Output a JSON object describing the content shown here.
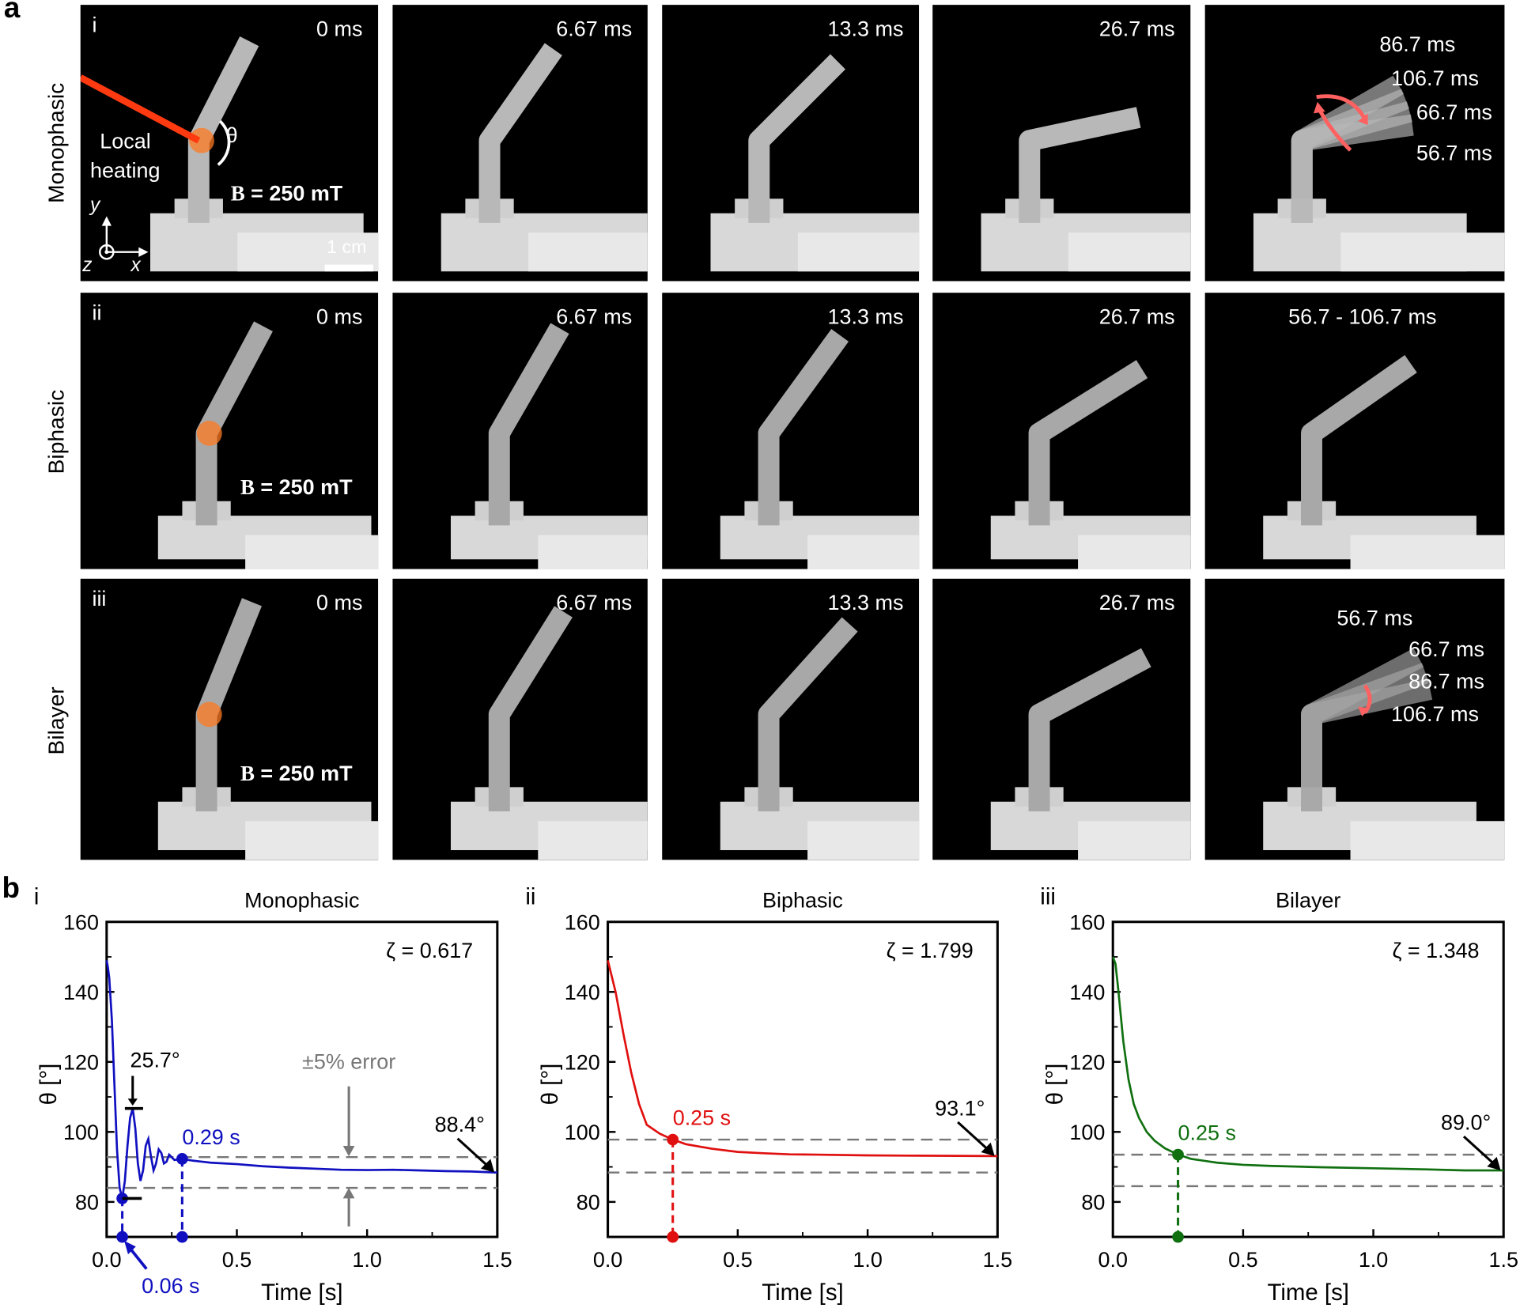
{
  "figure": {
    "panel_a_letter": "a",
    "panel_b_letter": "b",
    "row_labels": [
      "Monophasic",
      "Biphasic",
      "Bilayer"
    ],
    "row_roman": [
      "i",
      "ii",
      "iii"
    ],
    "field_label": "= 250 mT",
    "field_symbol": "B",
    "local_heating": [
      "Local",
      "heating"
    ],
    "theta_symbol": "θ",
    "scale_bar": "1 cm",
    "axes_labels": {
      "x": "x",
      "y": "y",
      "z": "z"
    },
    "laser_color": "#ff3a10",
    "annotation_arrow_color": "#ff6060",
    "photos": [
      {
        "times": [
          "0 ms",
          "6.67 ms",
          "13.3 ms",
          "26.7 ms"
        ],
        "last": [
          "86.7 ms",
          "106.7 ms",
          "66.7 ms",
          "56.7 ms"
        ]
      },
      {
        "times": [
          "0 ms",
          "6.67 ms",
          "13.3 ms",
          "26.7 ms"
        ],
        "last": [
          "56.7 -  106.7 ms"
        ]
      },
      {
        "times": [
          "0 ms",
          "6.67 ms",
          "13.3 ms",
          "26.7 ms"
        ],
        "last": [
          "56.7 ms",
          "66.7 ms",
          "86.7 ms",
          "106.7 ms"
        ]
      }
    ]
  },
  "chart_data": [
    {
      "type": "line",
      "roman": "i",
      "title": "Monophasic",
      "xlabel": "Time [s]",
      "ylabel": "θ [°]",
      "xlim": [
        0,
        1.5
      ],
      "ylim": [
        70,
        160
      ],
      "xticks": [
        "0.0",
        "0.5",
        "1.0",
        "1.5"
      ],
      "yticks": [
        "80",
        "100",
        "120",
        "140",
        "160"
      ],
      "color": "#1010c0",
      "damping": "ζ = 0.617",
      "band": [
        92.8,
        84.0
      ],
      "band_label": "±5% error",
      "final_label": "88.4°",
      "overshoot_label": "25.7°",
      "overshoot_range": [
        81,
        106.7
      ],
      "markers": [
        {
          "t": 0.06,
          "theta": 81,
          "label": "0.06 s"
        },
        {
          "t": 0.29,
          "theta": 92.3,
          "label": "0.29 s"
        }
      ],
      "points": [
        [
          0,
          149
        ],
        [
          0.005,
          147
        ],
        [
          0.01,
          144
        ],
        [
          0.02,
          132
        ],
        [
          0.03,
          113
        ],
        [
          0.04,
          95
        ],
        [
          0.05,
          84
        ],
        [
          0.06,
          81
        ],
        [
          0.07,
          86
        ],
        [
          0.08,
          96
        ],
        [
          0.09,
          104
        ],
        [
          0.1,
          106.7
        ],
        [
          0.11,
          101
        ],
        [
          0.12,
          91
        ],
        [
          0.13,
          86
        ],
        [
          0.14,
          89
        ],
        [
          0.15,
          96
        ],
        [
          0.16,
          98
        ],
        [
          0.17,
          93
        ],
        [
          0.18,
          89
        ],
        [
          0.19,
          91
        ],
        [
          0.2,
          95
        ],
        [
          0.21,
          94
        ],
        [
          0.22,
          91
        ],
        [
          0.23,
          91.5
        ],
        [
          0.24,
          93.5
        ],
        [
          0.26,
          92
        ],
        [
          0.29,
          92.3
        ],
        [
          0.33,
          91.8
        ],
        [
          0.4,
          91.2
        ],
        [
          0.5,
          90.8
        ],
        [
          0.6,
          90.2
        ],
        [
          0.7,
          89.8
        ],
        [
          0.8,
          89.5
        ],
        [
          0.9,
          89.2
        ],
        [
          1.0,
          89.1
        ],
        [
          1.1,
          89.2
        ],
        [
          1.2,
          89.0
        ],
        [
          1.3,
          88.8
        ],
        [
          1.4,
          88.7
        ],
        [
          1.5,
          88.4
        ]
      ]
    },
    {
      "type": "line",
      "roman": "ii",
      "title": "Biphasic",
      "xlabel": "Time [s]",
      "ylabel": "θ [°]",
      "xlim": [
        0,
        1.5
      ],
      "ylim": [
        70,
        160
      ],
      "xticks": [
        "0.0",
        "0.5",
        "1.0",
        "1.5"
      ],
      "yticks": [
        "80",
        "100",
        "120",
        "140",
        "160"
      ],
      "color": "#e01010",
      "damping": "ζ = 1.799",
      "band": [
        97.8,
        88.4
      ],
      "final_label": "93.1°",
      "markers": [
        {
          "t": 0.25,
          "theta": 97.8,
          "label": "0.25 s"
        }
      ],
      "points": [
        [
          0,
          149
        ],
        [
          0.03,
          140
        ],
        [
          0.06,
          128
        ],
        [
          0.09,
          117
        ],
        [
          0.12,
          108
        ],
        [
          0.15,
          102
        ],
        [
          0.2,
          99.5
        ],
        [
          0.25,
          97.8
        ],
        [
          0.3,
          96.5
        ],
        [
          0.4,
          95.2
        ],
        [
          0.5,
          94.3
        ],
        [
          0.6,
          93.9
        ],
        [
          0.7,
          93.6
        ],
        [
          0.8,
          93.5
        ],
        [
          1.0,
          93.3
        ],
        [
          1.2,
          93.2
        ],
        [
          1.5,
          93.1
        ]
      ]
    },
    {
      "type": "line",
      "roman": "iii",
      "title": "Bilayer",
      "xlabel": "Time [s]",
      "ylabel": "θ [°]",
      "xlim": [
        0,
        1.5
      ],
      "ylim": [
        70,
        160
      ],
      "xticks": [
        "0.0",
        "0.5",
        "1.0",
        "1.5"
      ],
      "yticks": [
        "80",
        "100",
        "120",
        "140",
        "160"
      ],
      "color": "#107010",
      "damping": "ζ = 1.348",
      "band": [
        93.5,
        84.5
      ],
      "final_label": "89.0°",
      "markers": [
        {
          "t": 0.25,
          "theta": 93.5,
          "label": "0.25 s"
        }
      ],
      "points": [
        [
          0,
          150
        ],
        [
          0.01,
          148
        ],
        [
          0.02,
          141
        ],
        [
          0.04,
          126
        ],
        [
          0.06,
          115
        ],
        [
          0.08,
          108
        ],
        [
          0.1,
          104
        ],
        [
          0.13,
          100
        ],
        [
          0.16,
          97.5
        ],
        [
          0.2,
          95.3
        ],
        [
          0.25,
          93.5
        ],
        [
          0.3,
          92.3
        ],
        [
          0.4,
          91.2
        ],
        [
          0.5,
          90.6
        ],
        [
          0.6,
          90.3
        ],
        [
          0.8,
          89.9
        ],
        [
          1.0,
          89.6
        ],
        [
          1.2,
          89.3
        ],
        [
          1.35,
          89.0
        ],
        [
          1.5,
          89.0
        ]
      ]
    }
  ]
}
